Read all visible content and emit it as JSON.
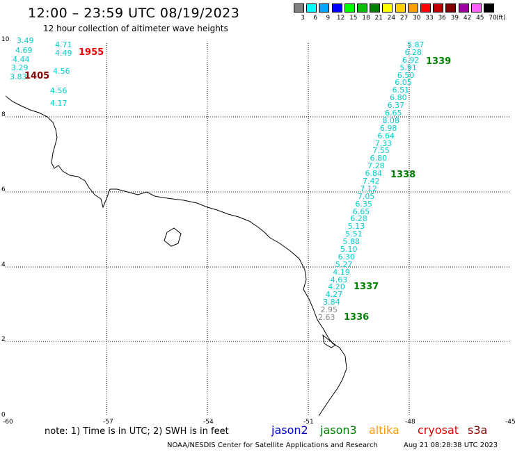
{
  "header": {
    "title": "12:00 – 23:59 UTC 08/19/2023",
    "subtitle": "12 hour collection of altimeter wave heights"
  },
  "legend": {
    "items": [
      {
        "label": "3",
        "color": "#808080"
      },
      {
        "label": "6",
        "color": "#00ffff"
      },
      {
        "label": "9",
        "color": "#00a8ff"
      },
      {
        "label": "12",
        "color": "#0000ff"
      },
      {
        "label": "15",
        "color": "#00ff00"
      },
      {
        "label": "18",
        "color": "#00c000"
      },
      {
        "label": "21",
        "color": "#008000"
      },
      {
        "label": "24",
        "color": "#ffff00"
      },
      {
        "label": "27",
        "color": "#ffd000"
      },
      {
        "label": "30",
        "color": "#ffa000"
      },
      {
        "label": "33",
        "color": "#ff0000"
      },
      {
        "label": "36",
        "color": "#c00000"
      },
      {
        "label": "39",
        "color": "#800000"
      },
      {
        "label": "42",
        "color": "#a000a0"
      },
      {
        "label": "45",
        "color": "#ff60ff"
      },
      {
        "label": "70",
        "color": "#000000"
      }
    ],
    "unit": "(ft)"
  },
  "axes": {
    "lon_labels": [
      "-60",
      "-57",
      "-54",
      "-51",
      "-48",
      "-45"
    ],
    "lat_labels": [
      "10",
      "8",
      "6",
      "4",
      "2",
      "0"
    ]
  },
  "passes": {
    "track_1955": {
      "time": "1955",
      "values": [
        "4.71",
        "4.49",
        "4.56",
        "4.56",
        "4.17"
      ]
    },
    "track_1405": {
      "time": "1405",
      "values": [
        "3.49",
        "4.69",
        "4.44",
        "3.29",
        "3.83"
      ]
    },
    "track_133x": {
      "times": [
        "1339",
        "1338",
        "1337",
        "1336"
      ],
      "values": [
        "5.87",
        "6.28",
        "6.92",
        "5.91",
        "6.50",
        "6.05",
        "6.51",
        "6.80",
        "6.37",
        "6.65",
        "8.08",
        "6.98",
        "6.64",
        "7.33",
        "7.55",
        "6.80",
        "7.28",
        "6.84",
        "7.42",
        "7.12",
        "7.05",
        "6.35",
        "6.65",
        "6.28",
        "5.13",
        "5.51",
        "5.88",
        "5.10",
        "6.30",
        "5.27",
        "4.19",
        "4.63",
        "4.20",
        "4.27",
        "3.84",
        "2.95",
        "2.63"
      ]
    }
  },
  "footer": {
    "note": "note:  1) Time is in UTC;  2) SWH is in feet",
    "satellites": [
      {
        "name": "jason2",
        "color": "#0000cc"
      },
      {
        "name": "jason3",
        "color": "#008000"
      },
      {
        "name": "altika",
        "color": "#ff9900"
      },
      {
        "name": "cryosat",
        "color": "#dd0000"
      },
      {
        "name": "s3a",
        "color": "#880000"
      }
    ],
    "credit": "NOAA/NESDIS Center for Satellite Applications and Research",
    "timestamp": "Aug 21 08:28:38 UTC 2023"
  }
}
